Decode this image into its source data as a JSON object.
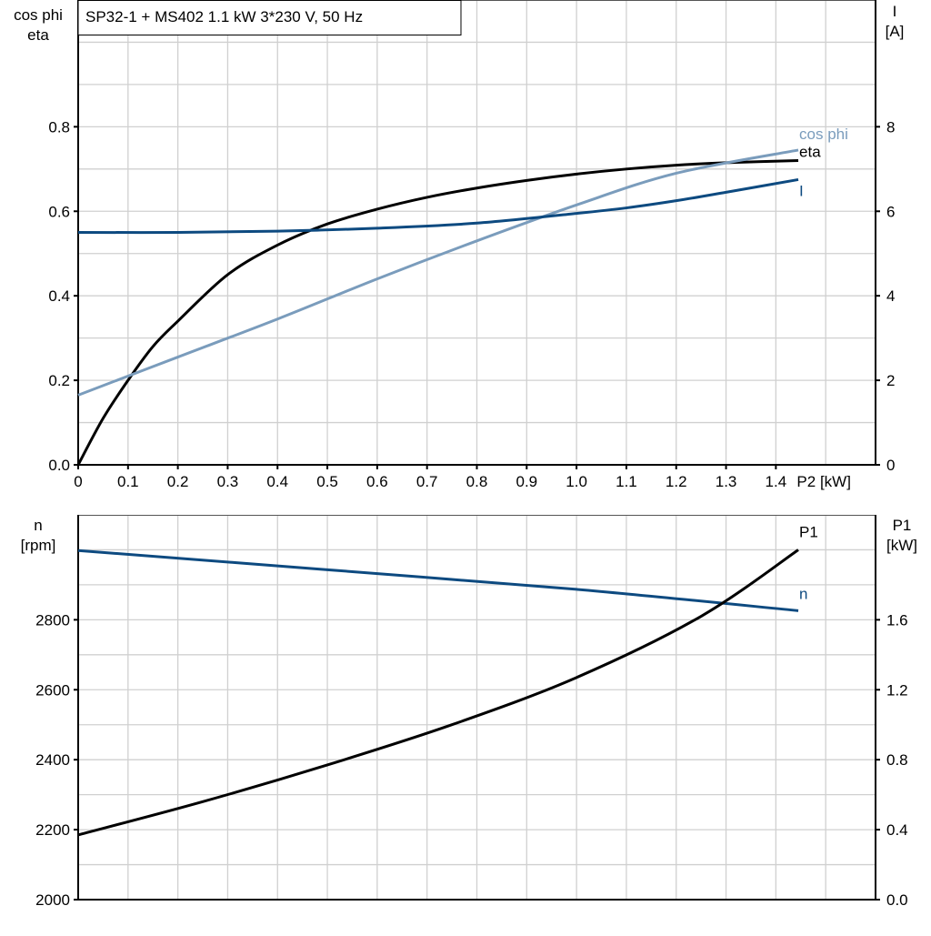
{
  "chart_data": [
    {
      "type": "line",
      "title": "SP32-1 + MS402   1.1 kW   3*230 V, 50 Hz",
      "xlabel": "P2 [kW]",
      "ylabel_left": [
        "cos phi",
        "eta"
      ],
      "ylabel_right": [
        "I",
        "[A]"
      ],
      "xlim": [
        0,
        1.6
      ],
      "ylim_left": [
        0,
        1.1
      ],
      "ylim_right": [
        0,
        11
      ],
      "x_ticks": [
        "0",
        "0.1",
        "0.2",
        "0.3",
        "0.4",
        "0.5",
        "0.6",
        "0.7",
        "0.8",
        "0.9",
        "1.0",
        "1.1",
        "1.2",
        "1.3",
        "1.4"
      ],
      "y_ticks_left": [
        "0.0",
        "0.2",
        "0.4",
        "0.6",
        "0.8"
      ],
      "y_ticks_right": [
        "0",
        "2",
        "4",
        "6",
        "8"
      ],
      "grid": true,
      "series": [
        {
          "name": "eta",
          "axis": "left",
          "color": "#000000",
          "x": [
            0,
            0.05,
            0.1,
            0.15,
            0.2,
            0.3,
            0.4,
            0.5,
            0.6,
            0.7,
            0.8,
            0.9,
            1.0,
            1.1,
            1.2,
            1.3,
            1.445
          ],
          "y": [
            0,
            0.11,
            0.2,
            0.28,
            0.34,
            0.45,
            0.52,
            0.57,
            0.605,
            0.633,
            0.655,
            0.673,
            0.688,
            0.7,
            0.709,
            0.715,
            0.72
          ]
        },
        {
          "name": "cos phi",
          "axis": "left",
          "color": "#7a9cbc",
          "x": [
            0,
            0.2,
            0.4,
            0.6,
            0.8,
            1.0,
            1.2,
            1.445
          ],
          "y": [
            0.165,
            0.255,
            0.345,
            0.44,
            0.53,
            0.615,
            0.69,
            0.745
          ]
        },
        {
          "name": "I",
          "axis": "right",
          "color": "#0d4a80",
          "x": [
            0,
            0.2,
            0.4,
            0.6,
            0.8,
            1.0,
            1.1,
            1.2,
            1.3,
            1.445
          ],
          "y": [
            5.5,
            5.5,
            5.53,
            5.6,
            5.72,
            5.95,
            6.08,
            6.25,
            6.45,
            6.75
          ]
        }
      ]
    },
    {
      "type": "line",
      "ylabel_left": [
        "n",
        "[rpm]"
      ],
      "ylabel_right": [
        "P1",
        "[kW]"
      ],
      "xlim": [
        0,
        1.6
      ],
      "ylim_left": [
        2000,
        3100
      ],
      "ylim_right": [
        0,
        2.2
      ],
      "y_ticks_left": [
        "2000",
        "2200",
        "2400",
        "2600",
        "2800"
      ],
      "y_ticks_right": [
        "0.0",
        "0.4",
        "0.8",
        "1.2",
        "1.6"
      ],
      "grid": true,
      "series": [
        {
          "name": "n",
          "axis": "left",
          "color": "#0d4a80",
          "x": [
            0,
            0.5,
            1.0,
            1.445
          ],
          "y": [
            2998,
            2943,
            2887,
            2826
          ]
        },
        {
          "name": "P1",
          "axis": "right",
          "color": "#000000",
          "x": [
            0,
            0.25,
            0.5,
            0.75,
            1.0,
            1.25,
            1.445
          ],
          "y": [
            0.37,
            0.56,
            0.77,
            1.0,
            1.27,
            1.62,
            2.0
          ]
        }
      ]
    }
  ]
}
